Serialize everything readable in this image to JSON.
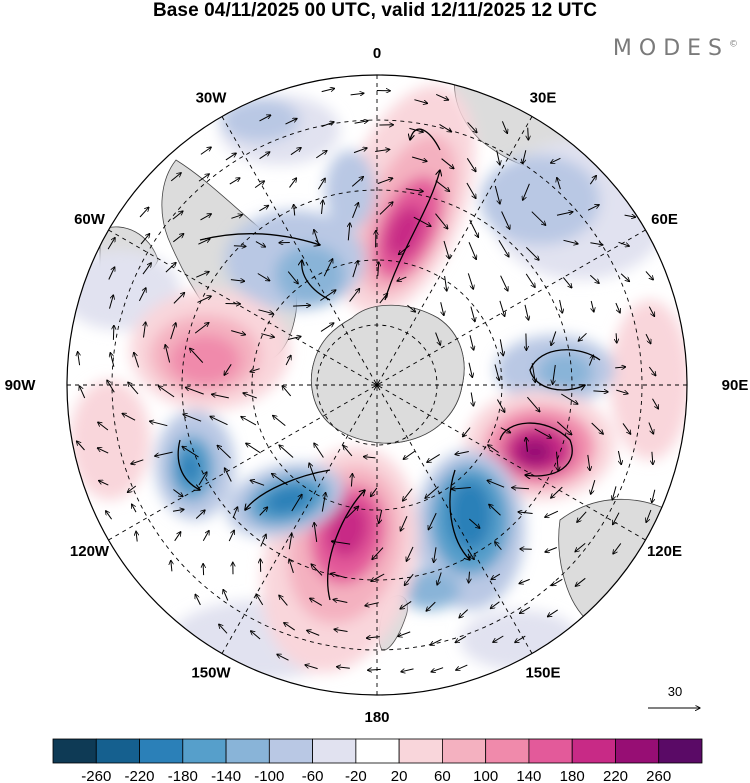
{
  "title": "Base 04/11/2025 00 UTC, valid 12/11/2025 12 UTC",
  "brand": {
    "name": "MODES",
    "mark": "©"
  },
  "longitude_labels": [
    {
      "id": "0",
      "text": "0",
      "lon": 0
    },
    {
      "id": "30e",
      "text": "30E",
      "lon": 30
    },
    {
      "id": "60e",
      "text": "60E",
      "lon": 60
    },
    {
      "id": "90e",
      "text": "90E",
      "lon": 90
    },
    {
      "id": "120e",
      "text": "120E",
      "lon": 120
    },
    {
      "id": "150e",
      "text": "150E",
      "lon": 150
    },
    {
      "id": "180",
      "text": "180",
      "lon": 180
    },
    {
      "id": "150w",
      "text": "150W",
      "lon": -150
    },
    {
      "id": "120w",
      "text": "120W",
      "lon": -120
    },
    {
      "id": "90w",
      "text": "90W",
      "lon": -90
    },
    {
      "id": "60w",
      "text": "60W",
      "lon": -60
    },
    {
      "id": "30w",
      "text": "30W",
      "lon": -30
    }
  ],
  "vector_reference": {
    "label": "30"
  },
  "colorbar": {
    "ticks": [
      "-260",
      "-220",
      "-180",
      "-140",
      "-100",
      "-60",
      "-20",
      "20",
      "60",
      "100",
      "140",
      "180",
      "220",
      "260"
    ],
    "colors": [
      "#0e3a55",
      "#15608f",
      "#2b80b8",
      "#569fcb",
      "#89b4d8",
      "#b9c8e4",
      "#e1e2f0",
      "#ffffff",
      "#f9d6db",
      "#f4b1c0",
      "#f08aab",
      "#e35a9a",
      "#c82a86",
      "#970e74",
      "#5a0a66"
    ]
  }
}
